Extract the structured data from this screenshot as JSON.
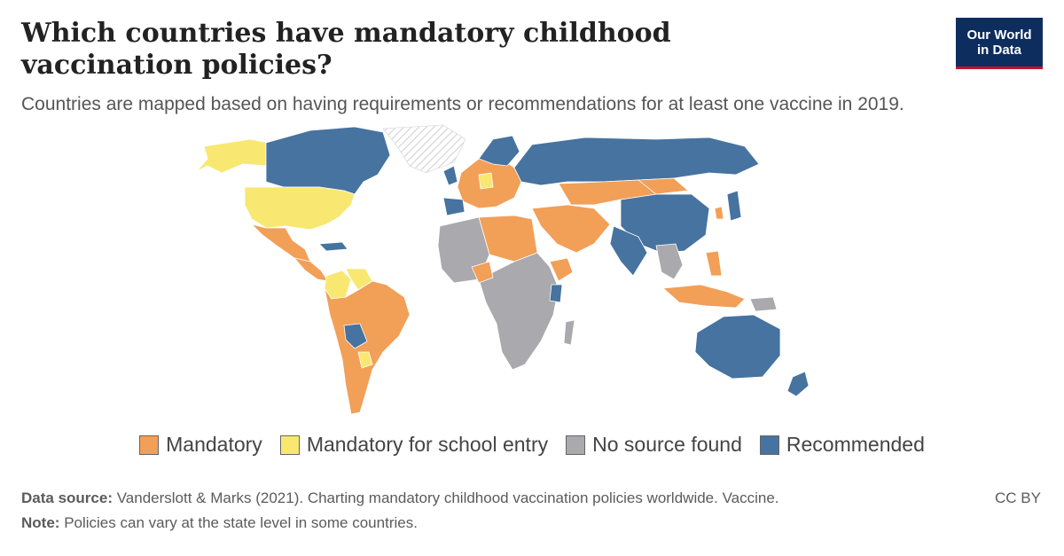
{
  "header": {
    "title": "Which countries have mandatory childhood vaccination policies?",
    "subtitle": "Countries are mapped based on having requirements or recommendations for at least one vaccine in 2019."
  },
  "logo": {
    "line1": "Our World",
    "line2": "in Data"
  },
  "legend": [
    {
      "label": "Mandatory",
      "color": "#f29f58"
    },
    {
      "label": "Mandatory for school entry",
      "color": "#f8e871"
    },
    {
      "label": "No source found",
      "color": "#a9a9ae"
    },
    {
      "label": "Recommended",
      "color": "#4673a0"
    }
  ],
  "colors": {
    "mandatory": "#f29f58",
    "school": "#f8e871",
    "nosource": "#a9a9ae",
    "recommended": "#4673a0",
    "nodata": "#e6e6e6"
  },
  "footer": {
    "source_label": "Data source:",
    "source_text": "Vanderslott & Marks (2021). Charting mandatory childhood vaccination policies worldwide. Vaccine.",
    "license": "CC BY",
    "note_label": "Note:",
    "note_text": "Policies can vary at the state level in some countries."
  }
}
